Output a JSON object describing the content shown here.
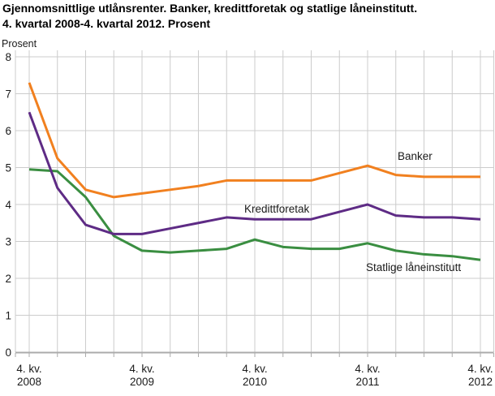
{
  "page": {
    "title_line1": "Gjennomsnittlige utlånsrenter. Banker, kredittforetak og statlige låneinstitutt.",
    "title_line2": "4. kvartal 2008-4. kvartal 2012. Prosent"
  },
  "chart_data": {
    "type": "line",
    "title": "Gjennomsnittlige utlånsrenter. Banker, kredittforetak og statlige låneinstitutt. 4. kvartal 2008-4. kvartal 2012. Prosent",
    "ylabel": "Prosent",
    "ylim": [
      0,
      8
    ],
    "yticks": [
      0,
      1,
      2,
      3,
      4,
      5,
      6,
      7,
      8
    ],
    "n_points": 17,
    "grid": true,
    "legend_position": "inline-labels",
    "x_tick_labels": [
      {
        "index": 0,
        "line1": "4. kv.",
        "line2": "2008"
      },
      {
        "index": 4,
        "line1": "4. kv.",
        "line2": "2009"
      },
      {
        "index": 8,
        "line1": "4. kv.",
        "line2": "2010"
      },
      {
        "index": 12,
        "line1": "4. kv.",
        "line2": "2011"
      },
      {
        "index": 16,
        "line1": "4. kv.",
        "line2": "2012"
      }
    ],
    "series": [
      {
        "name": "Banker",
        "color": "#f1801f",
        "values": [
          7.3,
          5.25,
          4.4,
          4.2,
          4.3,
          4.4,
          4.5,
          4.65,
          4.65,
          4.65,
          4.65,
          4.85,
          5.05,
          4.8,
          4.75,
          4.75,
          4.75
        ]
      },
      {
        "name": "Kredittforetak",
        "color": "#5e2b85",
        "values": [
          6.5,
          4.45,
          3.45,
          3.2,
          3.2,
          3.35,
          3.5,
          3.65,
          3.6,
          3.6,
          3.6,
          3.8,
          4.0,
          3.7,
          3.65,
          3.65,
          3.6
        ]
      },
      {
        "name": "Statlige låneinstitutt",
        "color": "#3a8e41",
        "values": [
          4.95,
          4.9,
          4.2,
          3.15,
          2.75,
          2.7,
          2.75,
          2.8,
          3.05,
          2.85,
          2.8,
          2.8,
          2.95,
          2.75,
          2.65,
          2.6,
          2.5
        ]
      }
    ],
    "colors": {
      "grid": "#cccccc",
      "axis": "#ababab",
      "label_text": "#1a1a1a"
    }
  }
}
